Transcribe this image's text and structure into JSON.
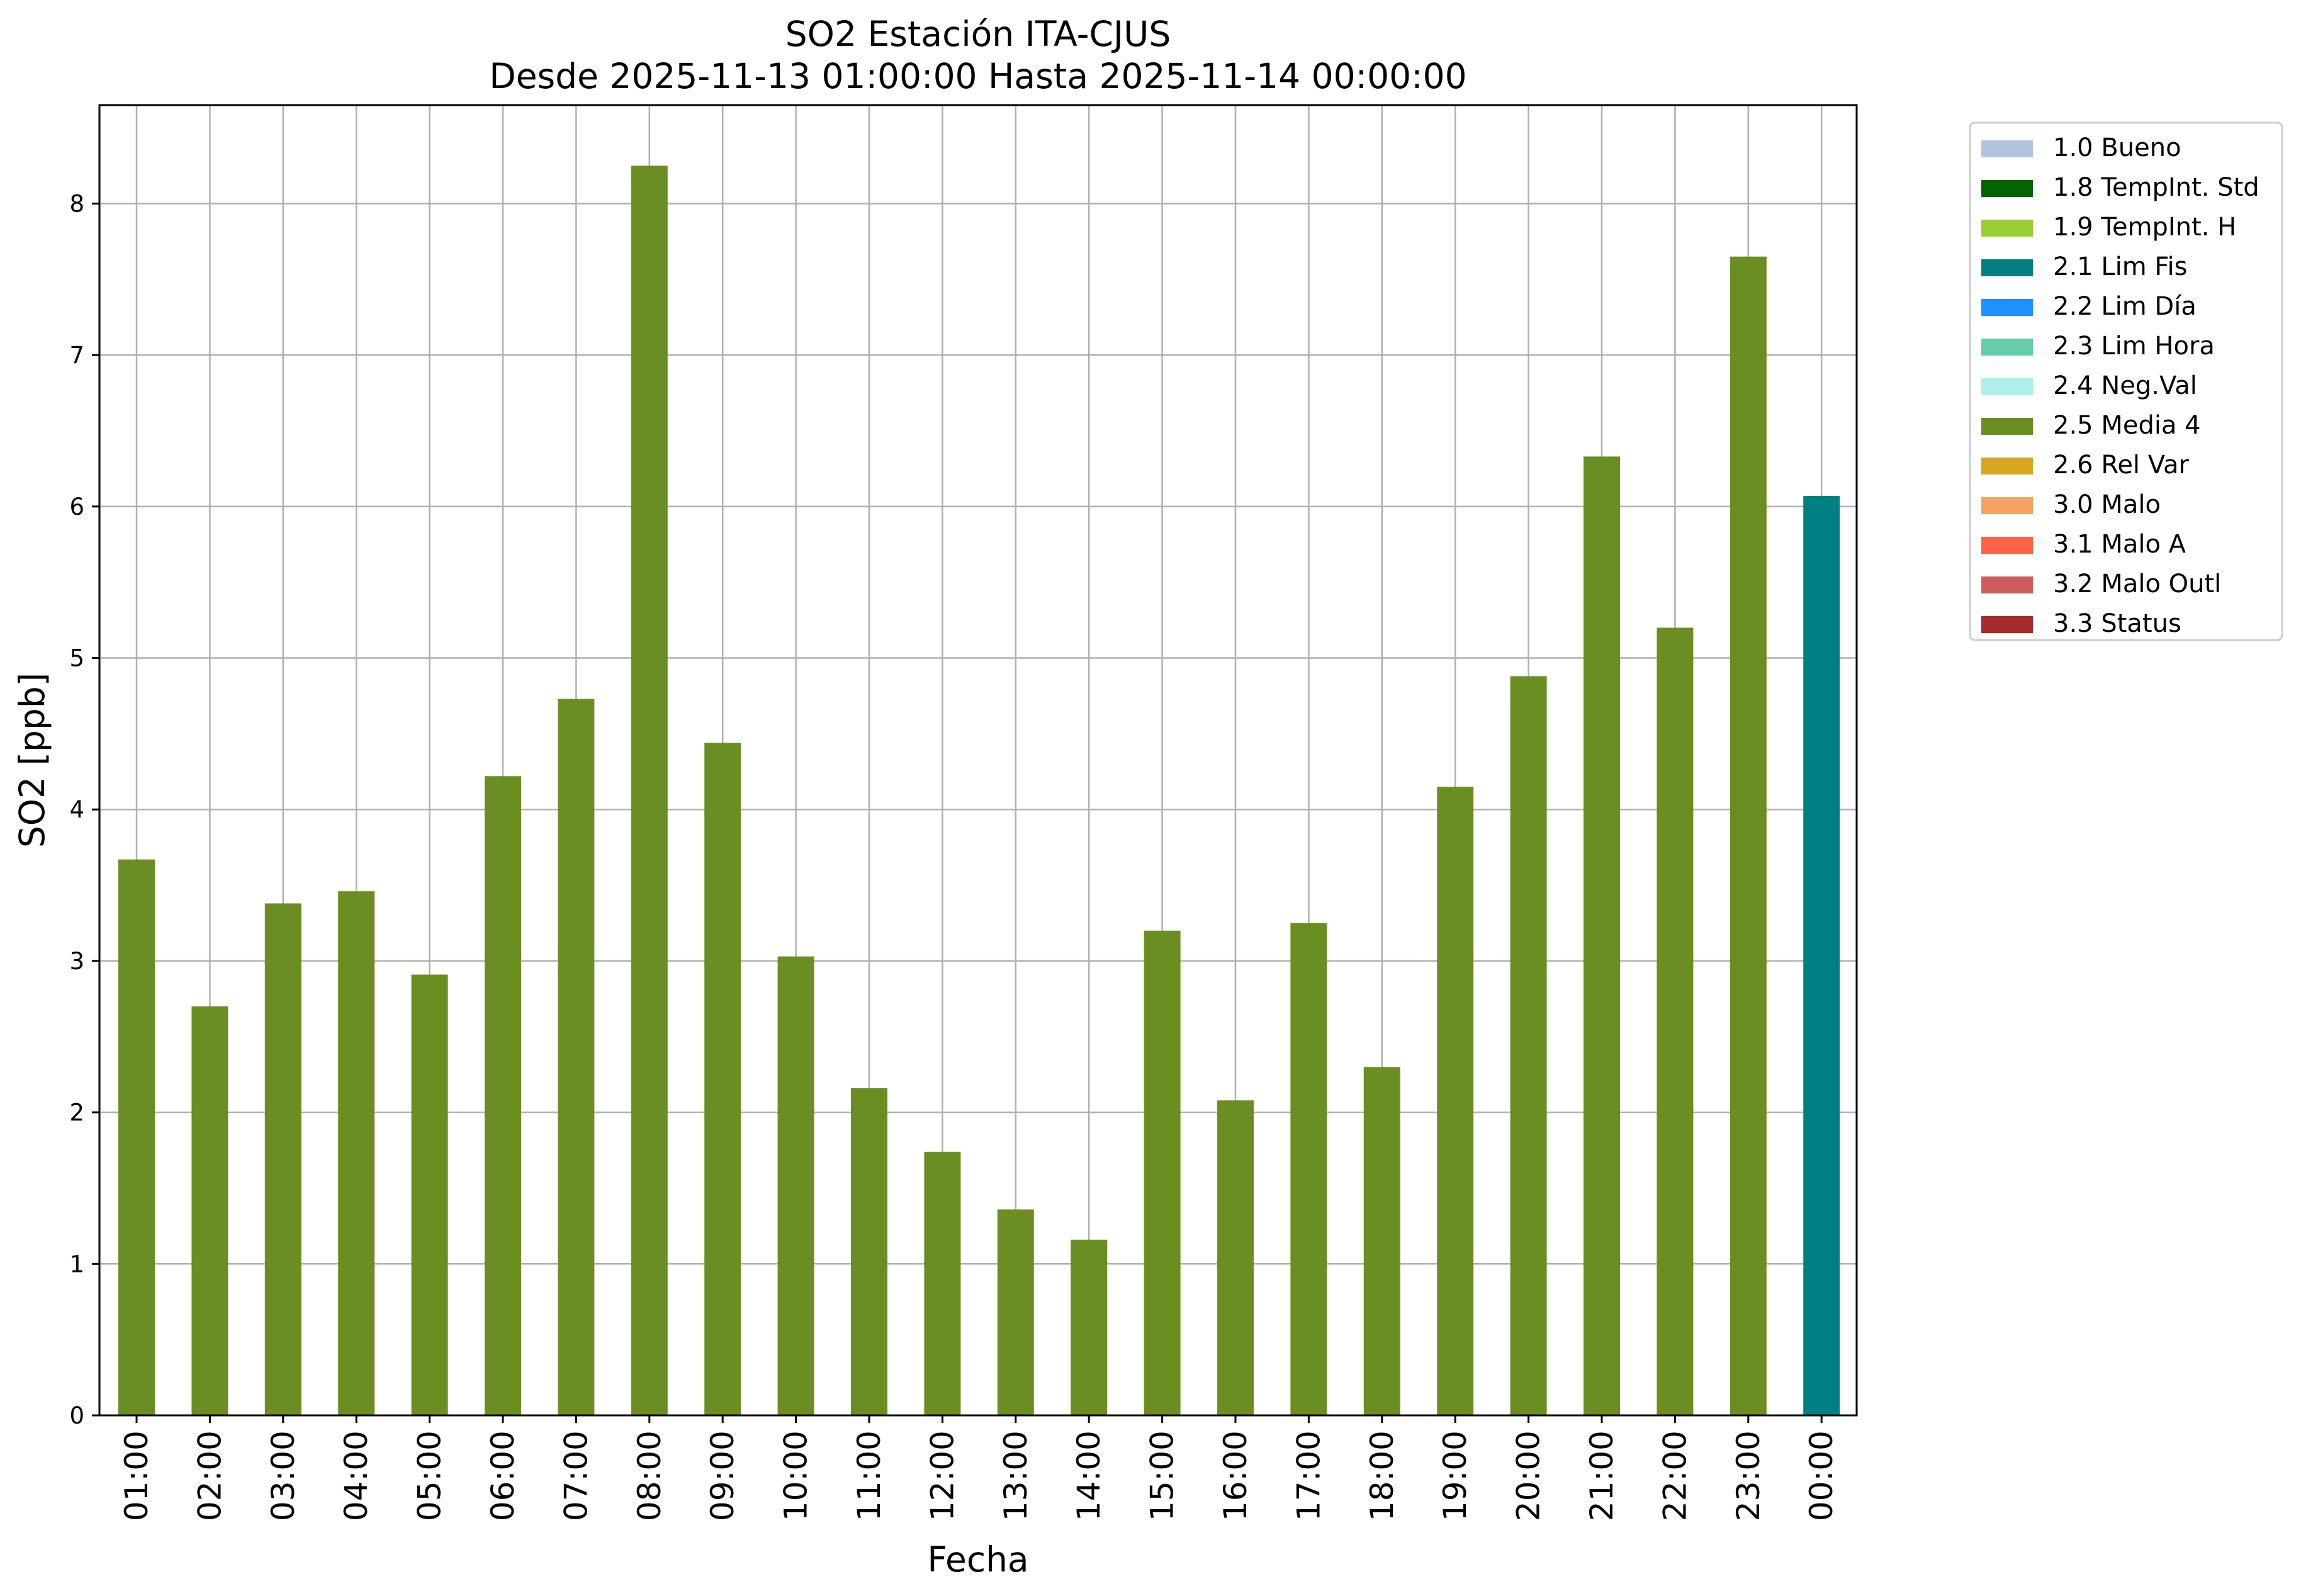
{
  "chart_data": {
    "type": "bar",
    "title_lines": [
      "SO2 Estación ITA-CJUS",
      "Desde 2025-11-13 01:00:00 Hasta 2025-11-14 00:00:00"
    ],
    "xlabel": "Fecha",
    "ylabel": "SO2 [ppb]",
    "ylim": [
      0,
      8.65
    ],
    "yticks": [
      0,
      1,
      2,
      3,
      4,
      5,
      6,
      7,
      8
    ],
    "grid": true,
    "legend_position": "outside right, top",
    "categories": [
      "01:00",
      "02:00",
      "03:00",
      "04:00",
      "05:00",
      "06:00",
      "07:00",
      "08:00",
      "09:00",
      "10:00",
      "11:00",
      "12:00",
      "13:00",
      "14:00",
      "15:00",
      "16:00",
      "17:00",
      "18:00",
      "19:00",
      "20:00",
      "21:00",
      "22:00",
      "23:00",
      "00:00"
    ],
    "values": [
      3.67,
      2.7,
      3.38,
      3.46,
      2.91,
      4.22,
      4.73,
      8.25,
      4.44,
      3.03,
      2.16,
      1.74,
      1.36,
      1.16,
      3.2,
      2.08,
      3.25,
      2.3,
      4.15,
      4.88,
      6.33,
      5.2,
      7.65,
      6.07
    ],
    "value_flags": [
      "2.5 Media 4",
      "2.5 Media 4",
      "2.5 Media 4",
      "2.5 Media 4",
      "2.5 Media 4",
      "2.5 Media 4",
      "2.5 Media 4",
      "2.5 Media 4",
      "2.5 Media 4",
      "2.5 Media 4",
      "2.5 Media 4",
      "2.5 Media 4",
      "2.5 Media 4",
      "2.5 Media 4",
      "2.5 Media 4",
      "2.5 Media 4",
      "2.5 Media 4",
      "2.5 Media 4",
      "2.5 Media 4",
      "2.5 Media 4",
      "2.5 Media 4",
      "2.5 Media 4",
      "2.5 Media 4",
      "2.1 Lim Fis"
    ],
    "legend": [
      {
        "label": "1.0 Bueno",
        "color": "#b0c4de"
      },
      {
        "label": "1.8 TempInt. Std",
        "color": "#006400"
      },
      {
        "label": "1.9 TempInt. H",
        "color": "#9acd32"
      },
      {
        "label": "2.1 Lim Fis",
        "color": "#008080"
      },
      {
        "label": "2.2 Lim Día",
        "color": "#1e90ff"
      },
      {
        "label": "2.3 Lim Hora",
        "color": "#66cdaa"
      },
      {
        "label": "2.4 Neg.Val",
        "color": "#afeeee"
      },
      {
        "label": "2.5 Media 4",
        "color": "#6b8e23"
      },
      {
        "label": "2.6 Rel Var",
        "color": "#daa520"
      },
      {
        "label": "3.0 Malo",
        "color": "#f4a460"
      },
      {
        "label": "3.1 Malo A",
        "color": "#ff6347"
      },
      {
        "label": "3.2 Malo Outl",
        "color": "#cd5c5c"
      },
      {
        "label": "3.3 Status",
        "color": "#a52a2a"
      }
    ]
  }
}
